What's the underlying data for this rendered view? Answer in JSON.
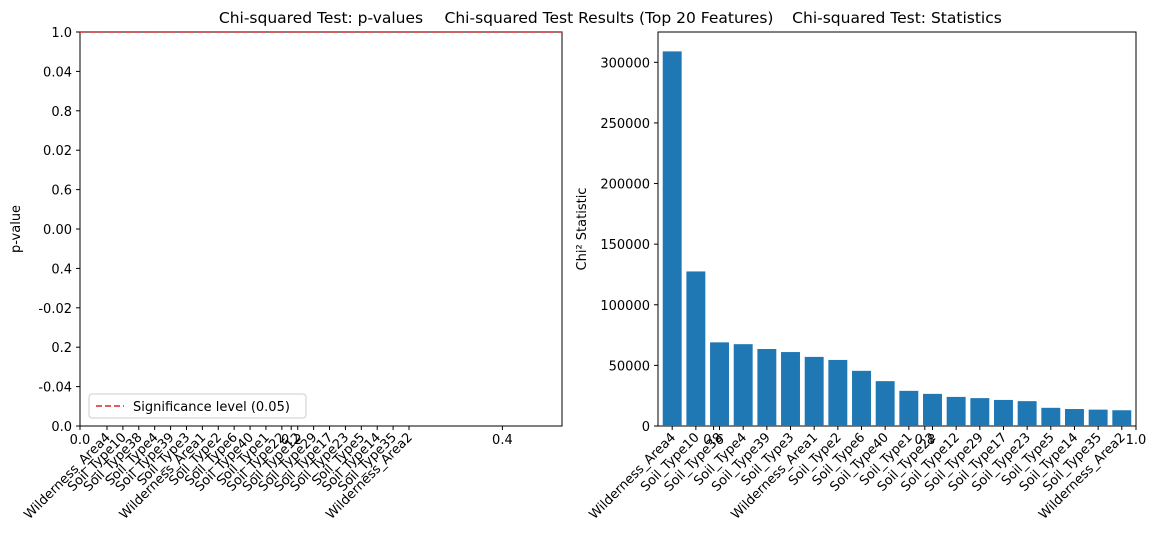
{
  "figure_title": "Chi-squared Test Results (Top 20 Features)",
  "chart_data": [
    {
      "type": "bar",
      "panel": "left",
      "title": "Chi-squared Test: p-values",
      "xlabel": "",
      "ylabel": "p-value",
      "categories": [
        "Wilderness_Area4",
        "Soil_Type10",
        "Soil_Type38",
        "Soil_Type4",
        "Soil_Type39",
        "Soil_Type3",
        "Wilderness_Area1",
        "Soil_Type2",
        "Soil_Type6",
        "Soil_Type40",
        "Soil_Type1",
        "Soil_Type22",
        "Soil_Type12",
        "Soil_Type29",
        "Soil_Type17",
        "Soil_Type23",
        "Soil_Type5",
        "Soil_Type14",
        "Soil_Type35",
        "Wilderness_Area2"
      ],
      "values": [
        0,
        0,
        0,
        0,
        0,
        0,
        0,
        0,
        0,
        0,
        0,
        0,
        0,
        0,
        0,
        0,
        0,
        0,
        0,
        0
      ],
      "ylim": [
        -0.05,
        0.05
      ],
      "yticks": [
        "-0.04",
        "-0.02",
        "0.00",
        "0.02",
        "0.04"
      ],
      "reference_line": {
        "value": 0.05,
        "label": "Significance level (0.05)",
        "color": "#d62728",
        "style": "dashed"
      },
      "legend": "lower-left",
      "bar_color": "#1f77b4",
      "grid": false
    },
    {
      "type": "bar",
      "panel": "right",
      "title": "Chi-squared Test: Statistics",
      "xlabel": "",
      "ylabel": "Chi² Statistic",
      "categories": [
        "Wilderness_Area4",
        "Soil_Type10",
        "Soil_Type38",
        "Soil_Type4",
        "Soil_Type39",
        "Soil_Type3",
        "Wilderness_Area1",
        "Soil_Type2",
        "Soil_Type6",
        "Soil_Type40",
        "Soil_Type1",
        "Soil_Type22",
        "Soil_Type12",
        "Soil_Type29",
        "Soil_Type17",
        "Soil_Type23",
        "Soil_Type5",
        "Soil_Type14",
        "Soil_Type35",
        "Wilderness_Area2"
      ],
      "values": [
        309000,
        127500,
        69000,
        67500,
        63500,
        61000,
        57000,
        54500,
        45500,
        37000,
        29000,
        26500,
        24000,
        23000,
        21500,
        20500,
        15000,
        14000,
        13500,
        13000
      ],
      "ylim": [
        0,
        325000
      ],
      "yticks": [
        "0",
        "50000",
        "100000",
        "150000",
        "200000",
        "250000",
        "300000"
      ],
      "bar_color": "#1f77b4",
      "grid": false
    }
  ],
  "overlay_axis": {
    "ticks": [
      "0.0",
      "0.2",
      "0.4",
      "0.6",
      "0.8",
      "1.0"
    ]
  }
}
